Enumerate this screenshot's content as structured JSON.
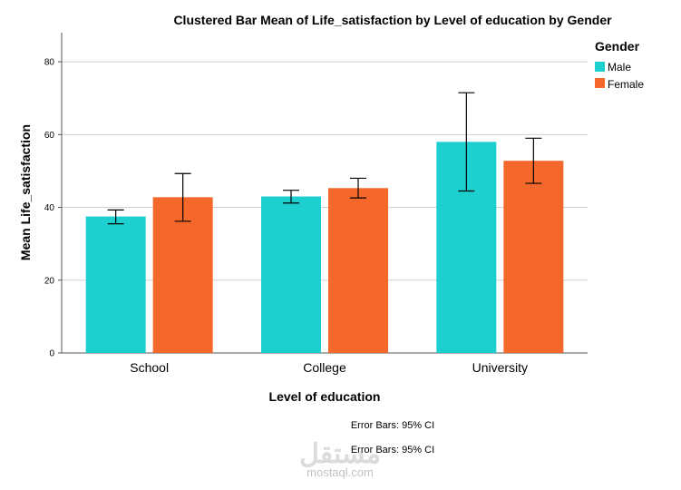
{
  "chart_data": {
    "type": "bar",
    "title": "Clustered Bar Mean of Life_satisfaction by Level of education by Gender",
    "xlabel": "Level of education",
    "ylabel": "Mean Life_satisfaction",
    "categories": [
      "School",
      "College",
      "University"
    ],
    "ylim": [
      0,
      88
    ],
    "yticks": [
      0,
      20,
      40,
      60,
      80
    ],
    "grid": true,
    "legend": {
      "title": "Gender",
      "position": "top-right"
    },
    "series": [
      {
        "name": "Male",
        "color": "#1ecfcf",
        "values": [
          37.5,
          43,
          58
        ],
        "ci_low": [
          35.5,
          41.2,
          44.5
        ],
        "ci_high": [
          39.3,
          44.7,
          71.5
        ]
      },
      {
        "name": "Female",
        "color": "#f4692b",
        "values": [
          42.8,
          45.3,
          52.8
        ],
        "ci_low": [
          36.2,
          42.6,
          46.6
        ],
        "ci_high": [
          49.3,
          48,
          59
        ]
      }
    ],
    "notes": [
      "Error Bars: 95% CI",
      "Error Bars: 95% CI"
    ]
  },
  "watermark": {
    "arabic": "مستقل",
    "latin": "mostaql.com"
  }
}
